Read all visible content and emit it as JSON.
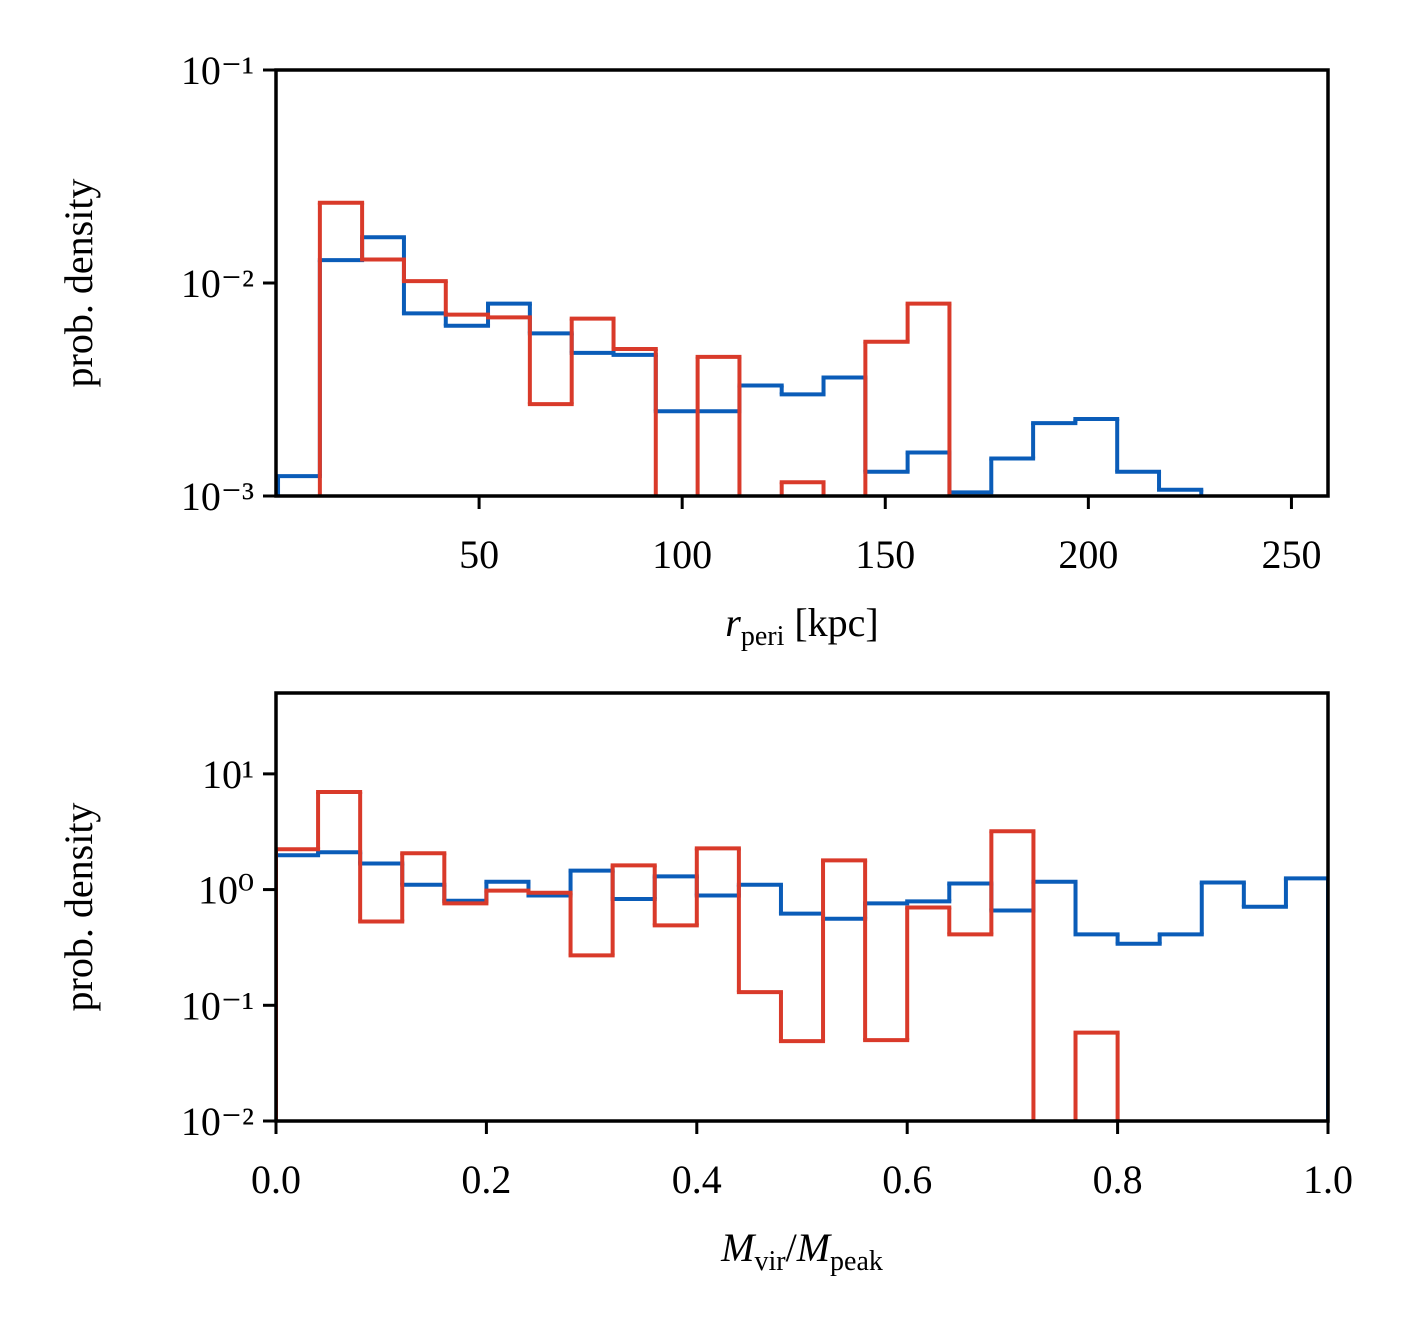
{
  "chart_data": [
    {
      "type": "histogram",
      "log_y": true,
      "ylabel": "prob. density",
      "xlabel": [
        {
          "text": "r",
          "style": "italic"
        },
        {
          "text": "peri",
          "style": "sub"
        },
        {
          "text": " [kpc]"
        }
      ],
      "xlim": [
        0,
        259
      ],
      "ylim": [
        0.001,
        0.1
      ],
      "xticks": [
        50,
        100,
        150,
        200,
        250
      ],
      "yticks": [
        {
          "value": 0.001,
          "label": "10⁻³"
        },
        {
          "value": 0.01,
          "label": "10⁻²"
        },
        {
          "value": 0.1,
          "label": "10⁻¹"
        }
      ],
      "bins": [
        0.5,
        10.8,
        21.2,
        31.5,
        41.8,
        52.2,
        62.5,
        72.8,
        83.1,
        93.5,
        103.8,
        114.1,
        124.5,
        134.8,
        145.1,
        155.5,
        165.8,
        176.1,
        186.4,
        196.8,
        207.1,
        217.4,
        227.8
      ],
      "series": [
        {
          "color": "#0a5cb8",
          "values": [
            0.00124,
            0.0128,
            0.0164,
            0.0072,
            0.0063,
            0.008,
            0.0058,
            0.0047,
            0.0046,
            0.0025,
            0.0025,
            0.0033,
            0.003,
            0.0036,
            0.0013,
            0.0016,
            0.00104,
            0.0015,
            0.0022,
            0.0023,
            0.0013,
            0.00107
          ]
        },
        {
          "color": "#d93a2a",
          "values": [
            0,
            0.0238,
            0.0129,
            0.0102,
            0.0071,
            0.0069,
            0.0027,
            0.0068,
            0.0049,
            0,
            0.0045,
            0,
            0.00116,
            0,
            0.0053,
            0.008,
            0,
            0,
            0,
            0,
            0,
            0
          ]
        }
      ]
    },
    {
      "type": "histogram",
      "log_y": true,
      "ylabel": "prob. density",
      "xlabel": [
        {
          "text": "M",
          "style": "italic"
        },
        {
          "text": "vir",
          "style": "sub"
        },
        {
          "text": "/"
        },
        {
          "text": "M",
          "style": "italic"
        },
        {
          "text": "peak",
          "style": "sub"
        }
      ],
      "xlim": [
        0,
        1
      ],
      "ylim": [
        0.01,
        50
      ],
      "xticks": [
        {
          "value": 0,
          "label": "0.0"
        },
        0.2,
        0.4,
        0.6,
        0.8,
        {
          "value": 1,
          "label": "1.0"
        }
      ],
      "yticks": [
        {
          "value": 0.01,
          "label": "10⁻²"
        },
        {
          "value": 0.1,
          "label": "10⁻¹"
        },
        {
          "value": 1,
          "label": "10⁰"
        },
        {
          "value": 10,
          "label": "10¹"
        }
      ],
      "bins": [
        0,
        0.04,
        0.08,
        0.12,
        0.16,
        0.2,
        0.24,
        0.28,
        0.32,
        0.36,
        0.4,
        0.44,
        0.48,
        0.52,
        0.56,
        0.6,
        0.64,
        0.68,
        0.72,
        0.76,
        0.8,
        0.84,
        0.88,
        0.92,
        0.96,
        1.0
      ],
      "series": [
        {
          "color": "#0a5cb8",
          "values": [
            1.98,
            2.1,
            1.68,
            1.1,
            0.8,
            1.17,
            0.89,
            1.46,
            0.83,
            1.3,
            0.89,
            1.1,
            0.62,
            0.56,
            0.76,
            0.79,
            1.13,
            0.66,
            1.17,
            0.41,
            0.34,
            0.41,
            1.15,
            0.71,
            1.25
          ]
        },
        {
          "color": "#d93a2a",
          "values": [
            2.23,
            6.97,
            0.53,
            2.06,
            0.76,
            0.98,
            0.94,
            0.27,
            1.62,
            0.49,
            2.27,
            0.13,
            0.049,
            1.79,
            0.05,
            0.7,
            0.41,
            3.19,
            0,
            0.058,
            0,
            0,
            0,
            0,
            0
          ]
        }
      ]
    }
  ]
}
